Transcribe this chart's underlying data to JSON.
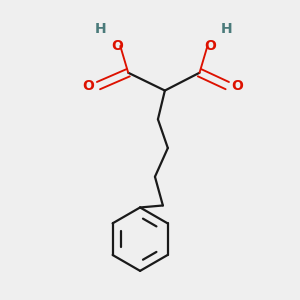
{
  "bg_color": "#efefef",
  "bond_color": "#1a1a1a",
  "oxygen_color": "#dd1100",
  "hydrogen_color": "#4a7a7a",
  "line_width": 1.6,
  "figure_size": [
    3.0,
    3.0
  ],
  "dpi": 100,
  "xlim": [
    0,
    300
  ],
  "ylim": [
    0,
    300
  ]
}
